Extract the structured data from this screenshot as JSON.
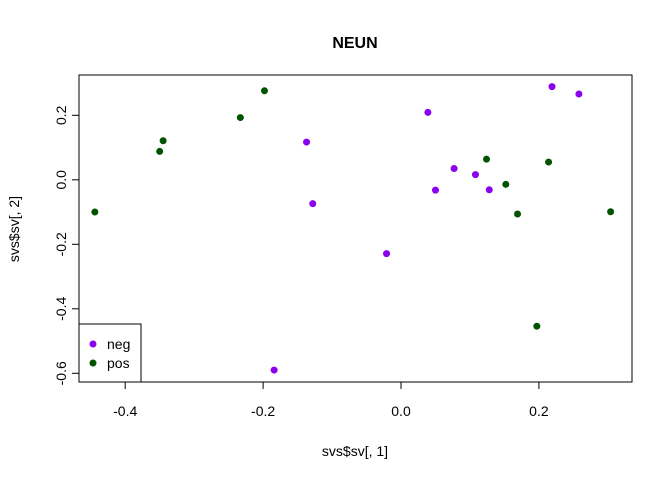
{
  "chart_data": {
    "type": "scatter",
    "title": "NEUN",
    "xlabel": "svs$sv[, 1]",
    "ylabel": "svs$sv[, 2]",
    "xlim": [
      -0.467,
      0.335
    ],
    "ylim": [
      -0.627,
      0.325
    ],
    "xticks": [
      -0.4,
      -0.2,
      0.0,
      0.2
    ],
    "xtick_labels": [
      "-0.4",
      "-0.2",
      "0.0",
      "0.2"
    ],
    "yticks": [
      -0.6,
      -0.4,
      -0.2,
      0.0,
      0.2
    ],
    "ytick_labels": [
      "-0.6",
      "-0.4",
      "-0.2",
      "0.0",
      "0.2"
    ],
    "grid": false,
    "legend_position": "bottom-left",
    "series": [
      {
        "name": "neg",
        "color": "#8B00EE",
        "points": [
          [
            0.219,
            0.289
          ],
          [
            0.258,
            0.266
          ],
          [
            0.039,
            0.209
          ],
          [
            -0.137,
            0.117
          ],
          [
            0.077,
            0.035
          ],
          [
            0.108,
            0.016
          ],
          [
            0.05,
            -0.032
          ],
          [
            0.128,
            -0.031
          ],
          [
            -0.128,
            -0.074
          ],
          [
            -0.021,
            -0.229
          ],
          [
            -0.184,
            -0.59
          ]
        ]
      },
      {
        "name": "pos",
        "color": "#005400",
        "points": [
          [
            -0.198,
            0.276
          ],
          [
            -0.233,
            0.193
          ],
          [
            -0.345,
            0.121
          ],
          [
            -0.35,
            0.088
          ],
          [
            -0.444,
            -0.1
          ],
          [
            0.124,
            0.064
          ],
          [
            0.214,
            0.055
          ],
          [
            0.152,
            -0.014
          ],
          [
            0.169,
            -0.106
          ],
          [
            0.304,
            -0.099
          ],
          [
            0.197,
            -0.454
          ]
        ]
      }
    ]
  }
}
